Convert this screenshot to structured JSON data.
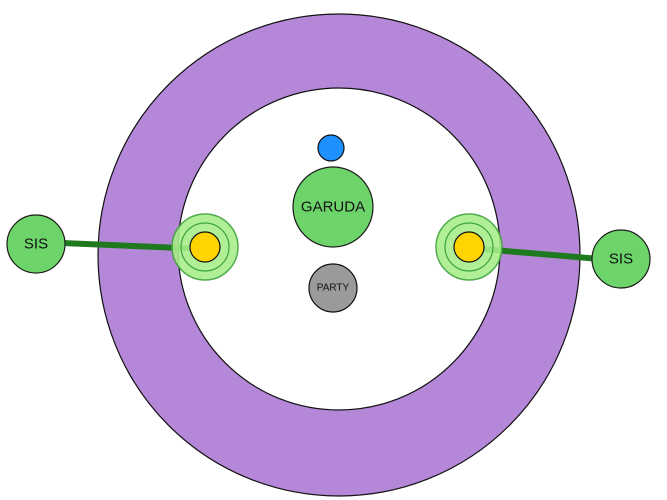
{
  "diagram": {
    "labels": {
      "left_sis": "SIS",
      "right_sis": "SIS",
      "garuda": "GARUDA",
      "party": "PARTY"
    },
    "colors": {
      "ring": "#b587d8",
      "inner_field": "#ffffff",
      "node_green": "#6dd46a",
      "node_green_stroke": "#2f7a2f",
      "link_line": "#1f7a1f",
      "target_halo": "#a8ee8a",
      "target_core": "#ffd400",
      "marker_blue": "#1e90ff",
      "party_grey": "#9a9a9a",
      "outline": "#111111"
    },
    "icons": {
      "top_marker": "blue-dot-icon",
      "target": "yellow-target-icon"
    }
  }
}
